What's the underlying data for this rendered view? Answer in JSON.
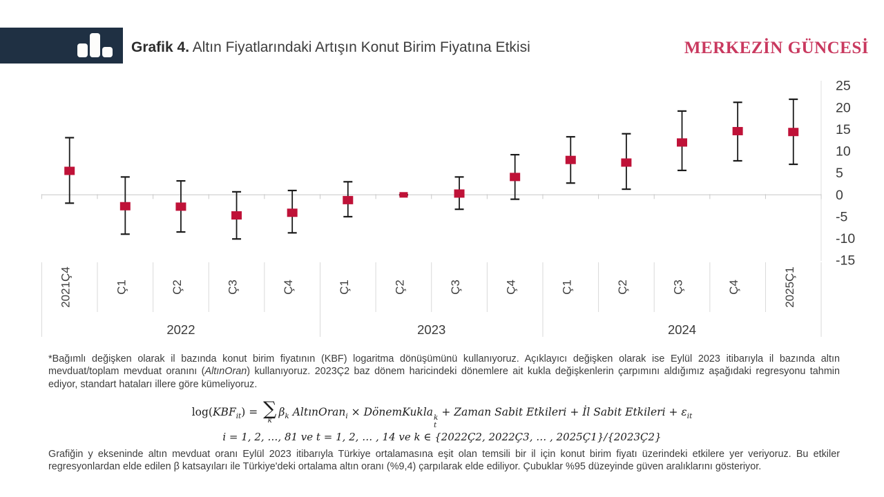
{
  "header": {
    "graph_label": "Grafik 4.",
    "title_rest": " Altın Fiyatlarındaki Artışın Konut Birim Fiyatına Etkisi",
    "brand": "MERKEZİN GÜNCESİ",
    "colors": {
      "logo_bg": "#1f3043",
      "brand_text": "#c9395f"
    }
  },
  "chart_data": {
    "type": "scatter",
    "subtype": "coefficient-plot-with-95ci-errorbars",
    "title": "Grafik 4. Altın Fiyatlarındaki Artışın Konut Birim Fiyatına Etkisi",
    "xlabel": "",
    "ylabel": "",
    "yticks": [
      25,
      20,
      15,
      10,
      5,
      0,
      -5,
      -10,
      -15
    ],
    "ylim": [
      -15,
      27
    ],
    "y_axis_side": "right",
    "grid": "zero-line-only",
    "marker_color": "#bf1238",
    "errorbar_color": "#1a1a1a",
    "gridline_color": "#d8d8d8",
    "points": [
      {
        "period": "2021Ç4",
        "axis_label": "2021Ç4",
        "value": 5.5,
        "lo": -1.9,
        "hi": 13.1,
        "base": false
      },
      {
        "period": "2022Ç1",
        "axis_label": "Ç1",
        "value": -2.6,
        "lo": -9.0,
        "hi": 4.1,
        "base": false
      },
      {
        "period": "2022Ç2",
        "axis_label": "Ç2",
        "value": -2.7,
        "lo": -8.5,
        "hi": 3.2,
        "base": false
      },
      {
        "period": "2022Ç3",
        "axis_label": "Ç3",
        "value": -4.7,
        "lo": -10.1,
        "hi": 0.7,
        "base": false
      },
      {
        "period": "2022Ç4",
        "axis_label": "Ç4",
        "value": -4.1,
        "lo": -8.7,
        "hi": 1.0,
        "base": false
      },
      {
        "period": "2023Ç1",
        "axis_label": "Ç1",
        "value": -1.2,
        "lo": -5.0,
        "hi": 3.0,
        "base": false
      },
      {
        "period": "2023Ç2",
        "axis_label": "Ç2",
        "value": 0.0,
        "lo": 0.0,
        "hi": 0.0,
        "base": true
      },
      {
        "period": "2023Ç3",
        "axis_label": "Ç3",
        "value": 0.3,
        "lo": -3.3,
        "hi": 4.1,
        "base": false
      },
      {
        "period": "2023Ç4",
        "axis_label": "Ç4",
        "value": 4.1,
        "lo": -1.0,
        "hi": 9.2,
        "base": false
      },
      {
        "period": "2024Ç1",
        "axis_label": "Ç1",
        "value": 8.0,
        "lo": 2.7,
        "hi": 13.3,
        "base": false
      },
      {
        "period": "2024Ç2",
        "axis_label": "Ç2",
        "value": 7.4,
        "lo": 1.3,
        "hi": 14.0,
        "base": false
      },
      {
        "period": "2024Ç3",
        "axis_label": "Ç3",
        "value": 12.0,
        "lo": 5.6,
        "hi": 19.2,
        "base": false
      },
      {
        "period": "2024Ç4",
        "axis_label": "Ç4",
        "value": 14.6,
        "lo": 7.8,
        "hi": 21.2,
        "base": false
      },
      {
        "period": "2025Ç1",
        "axis_label": "2025Ç1",
        "value": 14.4,
        "lo": 7.0,
        "hi": 21.9,
        "base": false
      }
    ],
    "year_groups": [
      {
        "label": "2022",
        "from": 0,
        "to": 5
      },
      {
        "label": "2023",
        "from": 5,
        "to": 9
      },
      {
        "label": "2024",
        "from": 9,
        "to": 14
      }
    ]
  },
  "footnote1": {
    "pre": "*Bağımlı değişken olarak il bazında konut birim fiyatının (KBF) logaritma dönüşümünü  kullanıyoruz.  Açıklayıcı değişken olarak ise Eylül 2023 itibarıyla il bazında altın mevduat/toplam  mevduat oranını (",
    "italic": "AltınOran",
    "post": ") kullanıyoruz. 2023Ç2 baz dönem haricindeki dönemlere ait kukla değişkenlerin çarpımını aldığımız aşağıdaki regresyonu tahmin ediyor,  standart hataları illere göre kümeliyoruz."
  },
  "formula": {
    "segments": [
      {
        "k": "n",
        "v": "log("
      },
      {
        "k": "i",
        "v": "KBF"
      },
      {
        "k": "sub",
        "v": "it"
      },
      {
        "k": "n",
        "v": ") = "
      },
      {
        "k": "sum",
        "v": "∑",
        "under": "k"
      },
      {
        "k": "i",
        "v": "β"
      },
      {
        "k": "sub",
        "v": "k"
      },
      {
        "k": "i",
        "v": " AltınOran"
      },
      {
        "k": "sub",
        "v": "i"
      },
      {
        "k": "n",
        "v": " × "
      },
      {
        "k": "i",
        "v": "DönemKukla"
      },
      {
        "k": "stack",
        "sup": "k",
        "sub": "t"
      },
      {
        "k": "n",
        "v": " + "
      },
      {
        "k": "i",
        "v": "Zaman Sabit Etkileri"
      },
      {
        "k": "n",
        "v": " + "
      },
      {
        "k": "i",
        "v": "İl Sabit Etkileri"
      },
      {
        "k": "n",
        "v": " + "
      },
      {
        "k": "i",
        "v": "ε"
      },
      {
        "k": "sub",
        "v": "it"
      }
    ],
    "line2": "i = 1, 2, …, 81  ve t = 1, 2, … , 14  ve k ∈ {2022Ç2, 2022Ç3, … , 2025Ç1}/{2023Ç2}"
  },
  "footnote2": {
    "text": "Grafiğin y ekseninde altın mevduat oranı Eylül 2023 itibarıyla Türkiye ortalamasına eşit olan temsili bir il için konut birim fiyatı üzerindeki etkilere yer veriyoruz. Bu etkiler regresyonlardan elde edilen  β katsayıları ile Türkiye'deki  ortalama altın oranı (%9,4) çarpılarak elde ediliyor.  Çubuklar %95 düzeyinde güven aralıklarını gösteriyor."
  }
}
